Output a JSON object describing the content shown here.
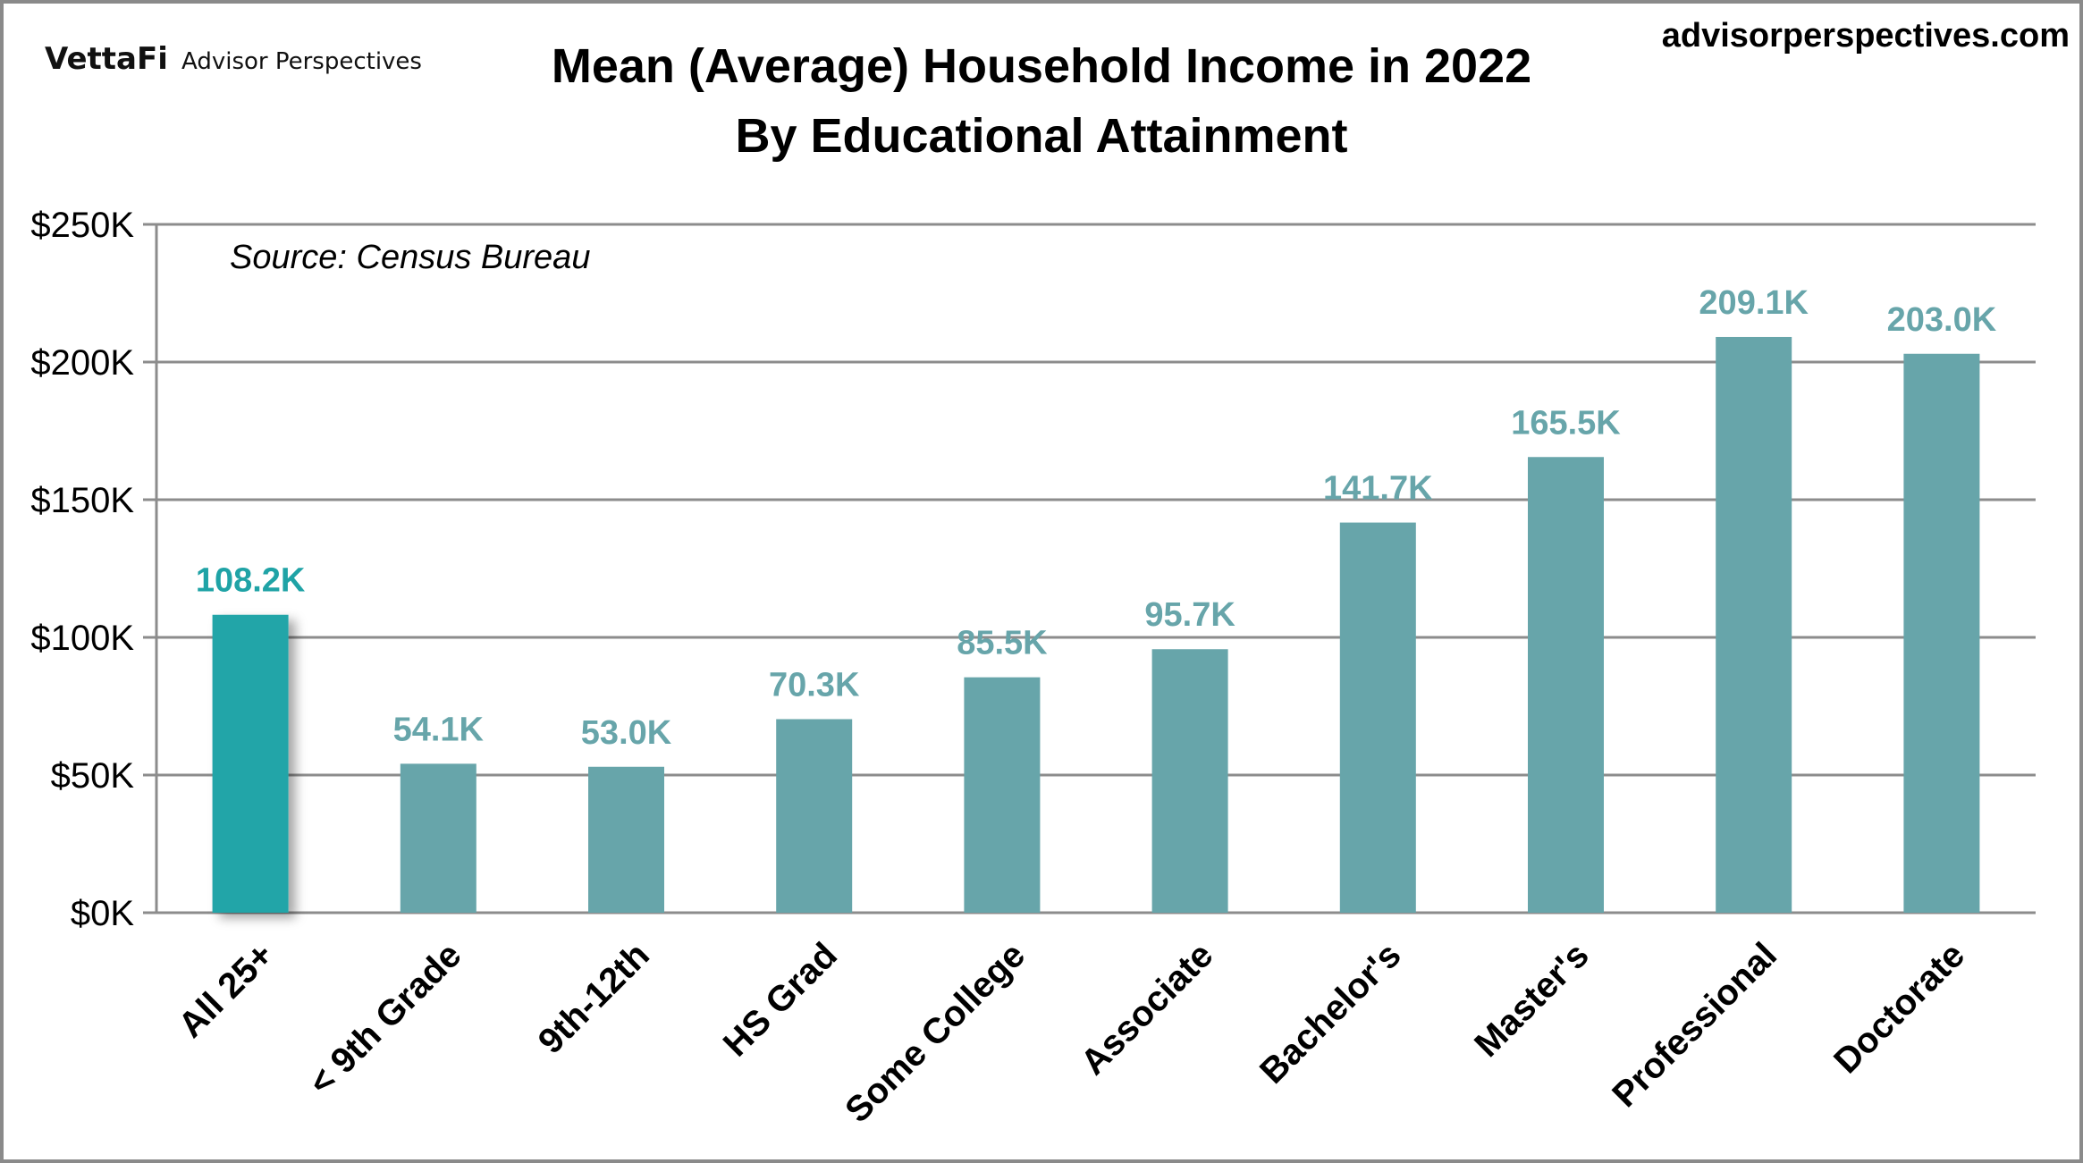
{
  "header": {
    "logo_brand": "VettaFi",
    "logo_sub": "Advisor Perspectives",
    "site": "advisorperspectives.com"
  },
  "chart_data": {
    "type": "bar",
    "title": "Mean (Average) Household Income in 2022",
    "subtitle": "By Educational Attainment",
    "annotation": "Source: Census Bureau",
    "xlabel": "",
    "ylabel": "",
    "ylim": [
      0,
      250000
    ],
    "yticks": [
      0,
      50000,
      100000,
      150000,
      200000,
      250000
    ],
    "ytick_labels": [
      "$0K",
      "$50K",
      "$100K",
      "$150K",
      "$200K",
      "$250K"
    ],
    "grid": true,
    "categories": [
      "All 25+",
      "< 9th Grade",
      "9th-12th",
      "HS Grad",
      "Some College",
      "Associate",
      "Bachelor's",
      "Master's",
      "Professional",
      "Doctorate"
    ],
    "values": [
      108200,
      54100,
      53000,
      70300,
      85500,
      95700,
      141700,
      165500,
      209100,
      203000
    ],
    "data_labels": [
      "108.2K",
      "54.1K",
      "53.0K",
      "70.3K",
      "85.5K",
      "95.7K",
      "141.7K",
      "165.5K",
      "209.1K",
      "203.0K"
    ],
    "colors": {
      "bar": "#67A5AA",
      "highlight_bar": "#20A5A8",
      "highlight_label": "#1FA3A6",
      "label": "#67A5AA",
      "grid": "#8C8C8C"
    }
  }
}
